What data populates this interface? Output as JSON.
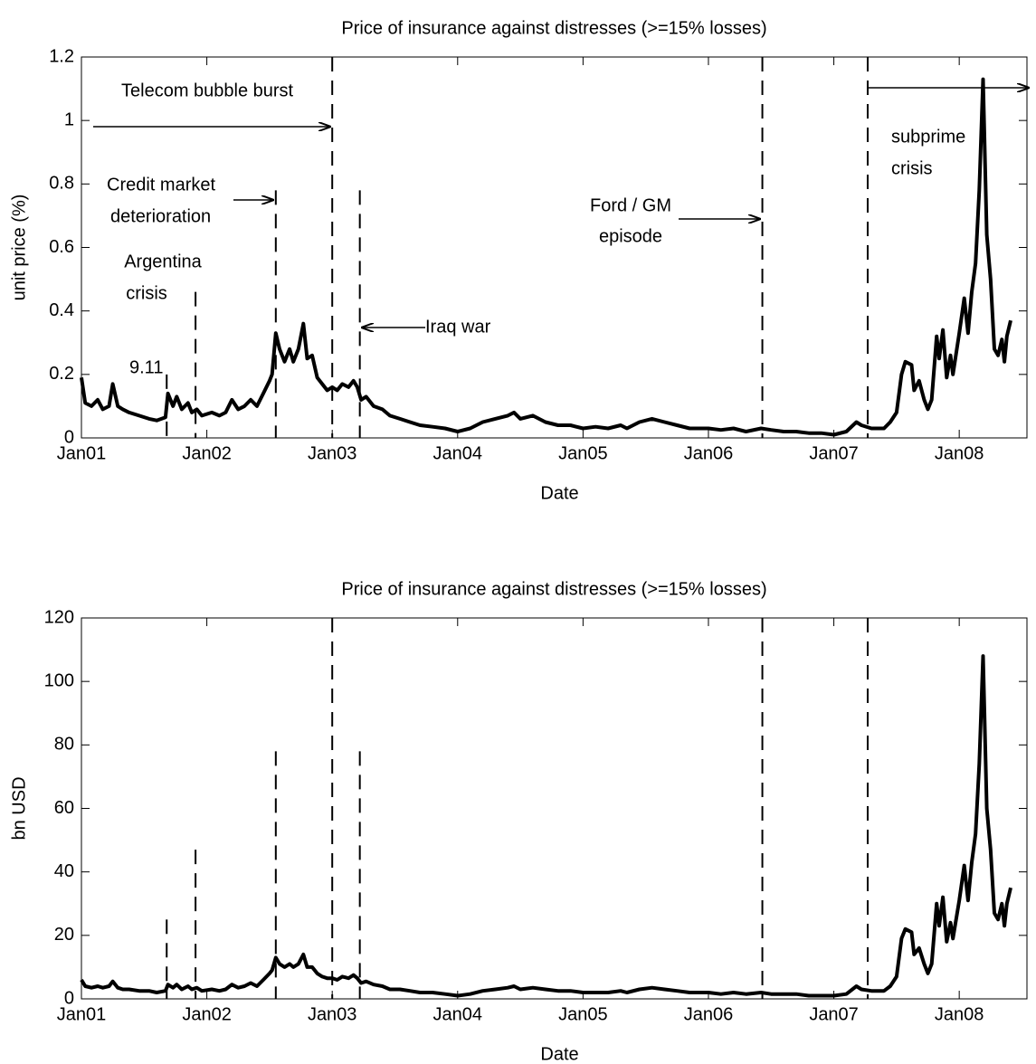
{
  "chart_data": [
    {
      "type": "line",
      "title": "Price of insurance against distresses (>=15% losses)",
      "x_label": "Date",
      "y_label": "unit price (%)",
      "xlim": [
        2001,
        2008.54
      ],
      "ylim": [
        0,
        1.2
      ],
      "xticks": [
        {
          "value": 2001,
          "label": "Jan01"
        },
        {
          "value": 2002,
          "label": "Jan02"
        },
        {
          "value": 2003,
          "label": "Jan03"
        },
        {
          "value": 2004,
          "label": "Jan04"
        },
        {
          "value": 2005,
          "label": "Jan05"
        },
        {
          "value": 2006,
          "label": "Jan06"
        },
        {
          "value": 2007,
          "label": "Jan07"
        },
        {
          "value": 2008,
          "label": "Jan08"
        }
      ],
      "yticks": [
        0,
        0.2,
        0.4,
        0.6,
        0.8,
        1,
        1.2
      ],
      "color": "#000000",
      "x": [
        2001.0,
        2001.03,
        2001.08,
        2001.13,
        2001.17,
        2001.22,
        2001.25,
        2001.29,
        2001.33,
        2001.38,
        2001.46,
        2001.54,
        2001.6,
        2001.67,
        2001.69,
        2001.73,
        2001.76,
        2001.8,
        2001.85,
        2001.88,
        2001.92,
        2001.96,
        2002.04,
        2002.1,
        2002.15,
        2002.2,
        2002.25,
        2002.3,
        2002.35,
        2002.4,
        2002.45,
        2002.5,
        2002.52,
        2002.55,
        2002.58,
        2002.62,
        2002.66,
        2002.69,
        2002.73,
        2002.77,
        2002.8,
        2002.84,
        2002.88,
        2002.92,
        2002.96,
        2003.0,
        2003.04,
        2003.08,
        2003.13,
        2003.17,
        2003.2,
        2003.23,
        2003.27,
        2003.33,
        2003.4,
        2003.46,
        2003.54,
        2003.62,
        2003.7,
        2003.8,
        2003.9,
        2004.0,
        2004.1,
        2004.2,
        2004.3,
        2004.4,
        2004.45,
        2004.5,
        2004.6,
        2004.7,
        2004.8,
        2004.9,
        2005.0,
        2005.1,
        2005.2,
        2005.3,
        2005.35,
        2005.45,
        2005.55,
        2005.65,
        2005.75,
        2005.85,
        2006.0,
        2006.1,
        2006.2,
        2006.3,
        2006.42,
        2006.5,
        2006.6,
        2006.7,
        2006.8,
        2006.9,
        2007.0,
        2007.1,
        2007.18,
        2007.22,
        2007.3,
        2007.4,
        2007.45,
        2007.5,
        2007.54,
        2007.57,
        2007.62,
        2007.64,
        2007.68,
        2007.72,
        2007.75,
        2007.78,
        2007.82,
        2007.84,
        2007.87,
        2007.9,
        2007.93,
        2007.95,
        2008.0,
        2008.04,
        2008.07,
        2008.1,
        2008.13,
        2008.16,
        2008.19,
        2008.22,
        2008.25,
        2008.28,
        2008.31,
        2008.34,
        2008.36,
        2008.38,
        2008.41
      ],
      "values": [
        0.19,
        0.11,
        0.1,
        0.12,
        0.09,
        0.1,
        0.17,
        0.1,
        0.09,
        0.08,
        0.07,
        0.06,
        0.055,
        0.065,
        0.14,
        0.1,
        0.13,
        0.09,
        0.11,
        0.08,
        0.09,
        0.07,
        0.08,
        0.07,
        0.08,
        0.12,
        0.09,
        0.1,
        0.12,
        0.1,
        0.14,
        0.18,
        0.2,
        0.33,
        0.28,
        0.24,
        0.28,
        0.24,
        0.28,
        0.36,
        0.25,
        0.26,
        0.19,
        0.17,
        0.15,
        0.16,
        0.15,
        0.17,
        0.16,
        0.18,
        0.16,
        0.12,
        0.13,
        0.1,
        0.09,
        0.07,
        0.06,
        0.05,
        0.04,
        0.035,
        0.03,
        0.02,
        0.03,
        0.05,
        0.06,
        0.07,
        0.08,
        0.06,
        0.07,
        0.05,
        0.04,
        0.04,
        0.03,
        0.035,
        0.03,
        0.04,
        0.03,
        0.05,
        0.06,
        0.05,
        0.04,
        0.03,
        0.03,
        0.025,
        0.03,
        0.02,
        0.03,
        0.025,
        0.02,
        0.02,
        0.015,
        0.015,
        0.01,
        0.02,
        0.05,
        0.04,
        0.03,
        0.03,
        0.05,
        0.08,
        0.2,
        0.24,
        0.23,
        0.15,
        0.18,
        0.12,
        0.09,
        0.12,
        0.32,
        0.25,
        0.34,
        0.19,
        0.26,
        0.2,
        0.33,
        0.44,
        0.33,
        0.46,
        0.55,
        0.78,
        1.13,
        0.64,
        0.5,
        0.28,
        0.26,
        0.31,
        0.24,
        0.32,
        0.37
      ],
      "vlines": [
        {
          "x": 2001.68,
          "top": 0.2
        },
        {
          "x": 2001.91,
          "top": 0.46
        },
        {
          "x": 2002.55,
          "top": 0.78
        },
        {
          "x": 2003.0,
          "top": 1.2
        },
        {
          "x": 2003.22,
          "top": 0.78
        },
        {
          "x": 2006.43,
          "top": 1.2
        },
        {
          "x": 2007.27,
          "top": 1.2
        }
      ],
      "annotations": [
        [
          "Telecom bubble burst"
        ],
        [
          "Credit market",
          "deterioration"
        ],
        [
          "Argentina",
          "crisis"
        ],
        [
          "9.11"
        ],
        [
          "Iraq war"
        ],
        [
          "Ford / GM",
          "episode"
        ],
        [
          "subprime",
          "crisis"
        ]
      ]
    },
    {
      "type": "line",
      "title": "Price of insurance against distresses (>=15% losses)",
      "x_label": "Date",
      "y_label": "bn USD",
      "xlim": [
        2001,
        2008.54
      ],
      "ylim": [
        0,
        120
      ],
      "xticks": [
        {
          "value": 2001,
          "label": "Jan01"
        },
        {
          "value": 2002,
          "label": "Jan02"
        },
        {
          "value": 2003,
          "label": "Jan03"
        },
        {
          "value": 2004,
          "label": "Jan04"
        },
        {
          "value": 2005,
          "label": "Jan05"
        },
        {
          "value": 2006,
          "label": "Jan06"
        },
        {
          "value": 2007,
          "label": "Jan07"
        },
        {
          "value": 2008,
          "label": "Jan08"
        }
      ],
      "yticks": [
        0,
        20,
        40,
        60,
        80,
        100,
        120
      ],
      "color": "#000000",
      "x": [
        2001.0,
        2001.03,
        2001.08,
        2001.13,
        2001.17,
        2001.22,
        2001.25,
        2001.29,
        2001.33,
        2001.38,
        2001.46,
        2001.54,
        2001.6,
        2001.67,
        2001.69,
        2001.73,
        2001.76,
        2001.8,
        2001.85,
        2001.88,
        2001.92,
        2001.96,
        2002.04,
        2002.1,
        2002.15,
        2002.2,
        2002.25,
        2002.3,
        2002.35,
        2002.4,
        2002.45,
        2002.5,
        2002.52,
        2002.55,
        2002.58,
        2002.62,
        2002.66,
        2002.69,
        2002.73,
        2002.77,
        2002.8,
        2002.84,
        2002.88,
        2002.92,
        2002.96,
        2003.0,
        2003.04,
        2003.08,
        2003.13,
        2003.17,
        2003.2,
        2003.23,
        2003.27,
        2003.33,
        2003.4,
        2003.46,
        2003.54,
        2003.62,
        2003.7,
        2003.8,
        2003.9,
        2004.0,
        2004.1,
        2004.2,
        2004.3,
        2004.4,
        2004.45,
        2004.5,
        2004.6,
        2004.7,
        2004.8,
        2004.9,
        2005.0,
        2005.1,
        2005.2,
        2005.3,
        2005.35,
        2005.45,
        2005.55,
        2005.65,
        2005.75,
        2005.85,
        2006.0,
        2006.1,
        2006.2,
        2006.3,
        2006.42,
        2006.5,
        2006.6,
        2006.7,
        2006.8,
        2006.9,
        2007.0,
        2007.1,
        2007.18,
        2007.22,
        2007.3,
        2007.4,
        2007.45,
        2007.5,
        2007.54,
        2007.57,
        2007.62,
        2007.64,
        2007.68,
        2007.72,
        2007.75,
        2007.78,
        2007.82,
        2007.84,
        2007.87,
        2007.9,
        2007.93,
        2007.95,
        2008.0,
        2008.04,
        2008.07,
        2008.1,
        2008.13,
        2008.16,
        2008.19,
        2008.22,
        2008.25,
        2008.28,
        2008.31,
        2008.34,
        2008.36,
        2008.38,
        2008.41
      ],
      "values": [
        6,
        4,
        3.5,
        4,
        3.5,
        4,
        5.5,
        3.5,
        3,
        3,
        2.5,
        2.5,
        2,
        2.5,
        4.5,
        3.5,
        4.5,
        3,
        4,
        3,
        3.5,
        2.5,
        3,
        2.5,
        3,
        4.5,
        3.5,
        4,
        5,
        4,
        6,
        8,
        9,
        13,
        11,
        10,
        11,
        10,
        11,
        14,
        10,
        10,
        8,
        7,
        6.5,
        6.5,
        6,
        7,
        6.5,
        7.5,
        6.5,
        5,
        5.5,
        4.5,
        4,
        3,
        3,
        2.5,
        2,
        2,
        1.5,
        1,
        1.5,
        2.5,
        3,
        3.5,
        4,
        3,
        3.5,
        3,
        2.5,
        2.5,
        2,
        2,
        2,
        2.5,
        2,
        3,
        3.5,
        3,
        2.5,
        2,
        2,
        1.5,
        2,
        1.5,
        2,
        1.5,
        1.5,
        1.5,
        1,
        1,
        1,
        1.5,
        4,
        3,
        2.5,
        2.5,
        4,
        7,
        19,
        22,
        21,
        14,
        16,
        11,
        8,
        11,
        30,
        23,
        32,
        18,
        24,
        19,
        31,
        42,
        31,
        43,
        52,
        74,
        108,
        60,
        47,
        27,
        25,
        30,
        23,
        30,
        35
      ],
      "vlines": [
        {
          "x": 2001.68,
          "top": 25
        },
        {
          "x": 2001.91,
          "top": 47
        },
        {
          "x": 2002.55,
          "top": 78
        },
        {
          "x": 2003.0,
          "top": 120
        },
        {
          "x": 2003.22,
          "top": 78
        },
        {
          "x": 2006.43,
          "top": 120
        },
        {
          "x": 2007.27,
          "top": 120
        }
      ]
    }
  ]
}
